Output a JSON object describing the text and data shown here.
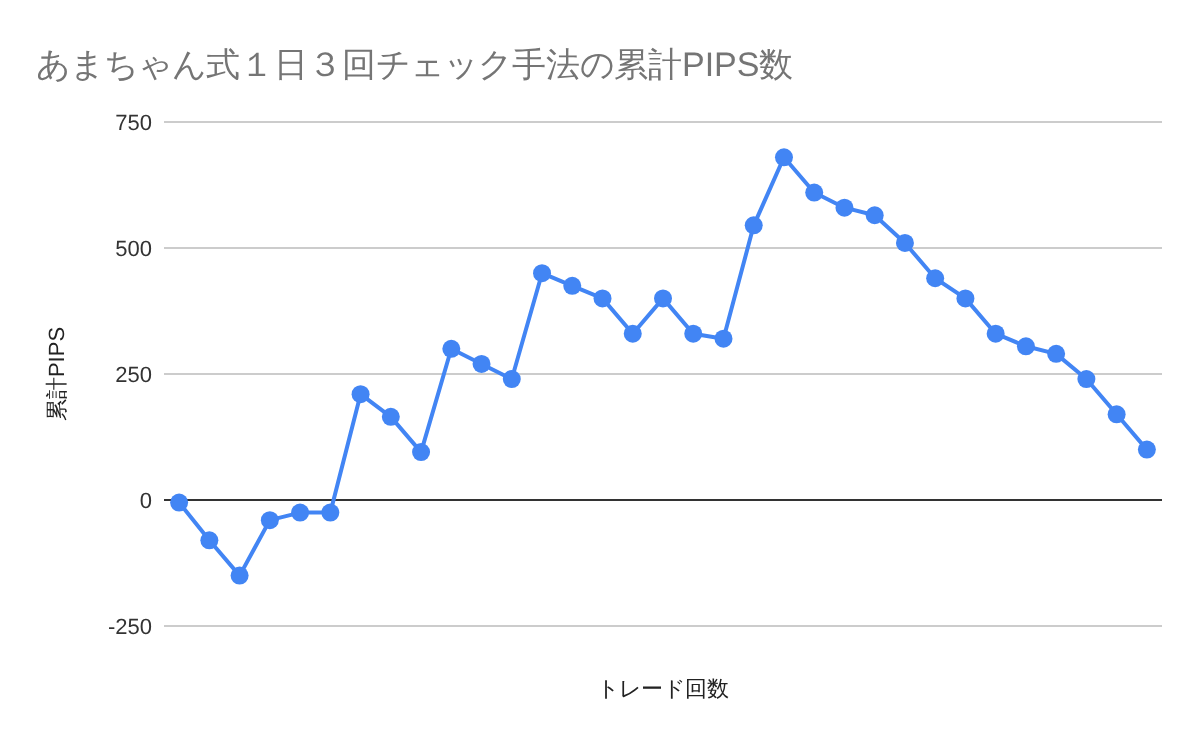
{
  "chart_data": {
    "type": "line",
    "title": "あまちゃん式１日３回チェック手法の累計PIPS数",
    "xlabel": "トレード回数",
    "ylabel": "累計PIPS",
    "categories": [
      null,
      null,
      null,
      null,
      null,
      null,
      null,
      null,
      null,
      null,
      null,
      null,
      null,
      null,
      null,
      null,
      null,
      null,
      null,
      null,
      null,
      null,
      null,
      null,
      null,
      null,
      null,
      null,
      null,
      null,
      null,
      null,
      null
    ],
    "series": [
      {
        "color": "#4285f4",
        "values": [
          -5,
          -80,
          -150,
          -40,
          -25,
          -25,
          210,
          165,
          95,
          300,
          270,
          240,
          450,
          425,
          400,
          330,
          400,
          330,
          320,
          545,
          680,
          610,
          580,
          565,
          510,
          440,
          400,
          330,
          305,
          290,
          240,
          170,
          100
        ]
      }
    ],
    "ylim": [
      -250,
      750
    ],
    "yticks": [
      -250,
      0,
      250,
      500,
      750
    ],
    "grid": "y",
    "marker": "circle",
    "line_style": "solid"
  }
}
